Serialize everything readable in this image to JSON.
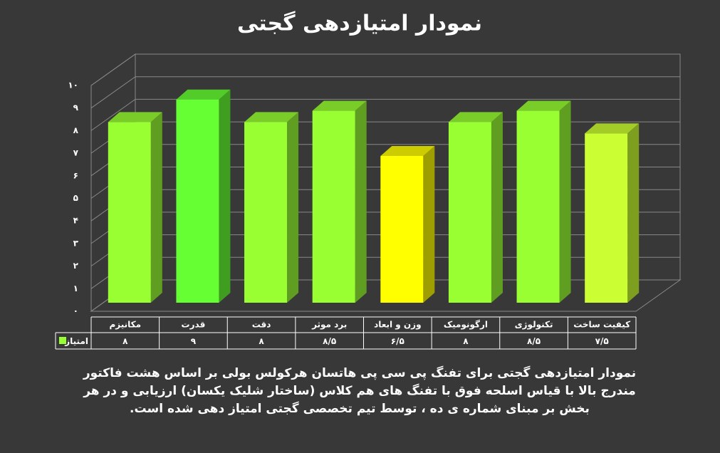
{
  "chart_data": {
    "type": "bar3d",
    "title": "نمودار امتیازدهی گجتی",
    "categories": [
      "مکانیزم",
      "قدرت",
      "دقت",
      "برد موثر",
      "وزن و ابعاد",
      "ارگونومیک",
      "تکنولوژی",
      "کیفیت ساخت"
    ],
    "series": [
      {
        "name": "امتیاز",
        "color": "#99ff33",
        "colors": [
          "#99ff33",
          "#66ff33",
          "#99ff33",
          "#99ff33",
          "#ffff00",
          "#99ff33",
          "#99ff33",
          "#ccff33"
        ],
        "values": [
          8,
          9,
          8,
          8.5,
          6.5,
          8,
          8.5,
          7.5
        ],
        "value_labels": [
          "۸",
          "۹",
          "۸",
          "۸/۵",
          "۶/۵",
          "۸",
          "۸/۵",
          "۷/۵"
        ]
      }
    ],
    "ylim": [
      0,
      10
    ],
    "yticks": [
      {
        "value": 0,
        "label": "۰"
      },
      {
        "value": 1,
        "label": "۱"
      },
      {
        "value": 2,
        "label": "۲"
      },
      {
        "value": 3,
        "label": "۳"
      },
      {
        "value": 4,
        "label": "۴"
      },
      {
        "value": 5,
        "label": "۵"
      },
      {
        "value": 6,
        "label": "۶"
      },
      {
        "value": 7,
        "label": "۷"
      },
      {
        "value": 8,
        "label": "۸"
      },
      {
        "value": 9,
        "label": "۹"
      },
      {
        "value": 10,
        "label": "۱۰"
      }
    ],
    "grid": true,
    "caption": [
      "نمودار امتیازدهی گجتی برای تفنگ پی سی پی هاتسان هرکولس بولی بر اساس هشت فاکتور",
      "مندرج بالا با قیاس اسلحه فوق با تفنگ های هم کلاس (ساختار شلیک یکسان) ارزیابی و در هر",
      "بخش بر مبنای شماره ی ده ، توسط تیم تخصصی گجتی امتیاز دهی شده است."
    ]
  }
}
